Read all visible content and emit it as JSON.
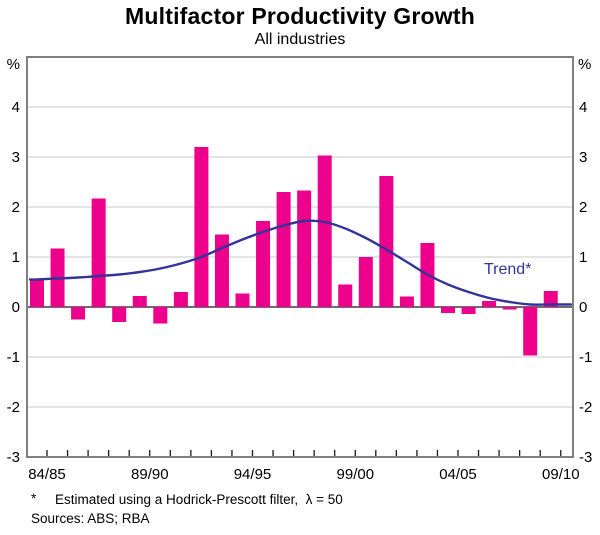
{
  "header": {
    "title": "Multifactor Productivity Growth",
    "subtitle": "All industries"
  },
  "axes": {
    "left_unit": "%",
    "right_unit": "%"
  },
  "annotations": {
    "trend_label": "Trend*"
  },
  "footnotes": {
    "asterisk": "*",
    "footnote": "Estimated using a Hodrick-Prescott filter,  λ = 50",
    "sources": "Sources: ABS; RBA"
  },
  "chart_data": {
    "type": "bar",
    "title": "Multifactor Productivity Growth",
    "subtitle": "All industries",
    "ylabel": "%",
    "ylim": [
      -3,
      5
    ],
    "yticks": [
      -3,
      -2,
      -1,
      0,
      1,
      2,
      3,
      4
    ],
    "grid": true,
    "legend_position": "inline-annotation",
    "categories": [
      "84/85",
      "85/86",
      "86/87",
      "87/88",
      "88/89",
      "89/90",
      "90/91",
      "91/92",
      "92/93",
      "93/94",
      "94/95",
      "95/96",
      "96/97",
      "97/98",
      "98/99",
      "99/00",
      "00/01",
      "01/02",
      "02/03",
      "03/04",
      "04/05",
      "05/06",
      "06/07",
      "07/08",
      "08/09",
      "09/10"
    ],
    "x_tick_labels": [
      "84/85",
      "89/90",
      "94/95",
      "99/00",
      "04/05",
      "09/10"
    ],
    "x_tick_label_indices": [
      0,
      5,
      10,
      15,
      20,
      25
    ],
    "series": [
      {
        "name": "Multifactor productivity growth",
        "type": "bar",
        "color": "#EC008C",
        "values": [
          0.55,
          1.17,
          -0.25,
          2.17,
          -0.3,
          0.22,
          -0.33,
          0.3,
          3.2,
          1.45,
          0.27,
          1.72,
          2.3,
          2.33,
          3.03,
          0.45,
          1.0,
          2.62,
          0.21,
          1.28,
          -0.12,
          -0.14,
          0.12,
          -0.05,
          -0.97,
          0.32
        ]
      },
      {
        "name": "Trend*",
        "type": "line",
        "color": "#333399",
        "values": [
          0.55,
          0.57,
          0.59,
          0.62,
          0.65,
          0.7,
          0.77,
          0.87,
          1.0,
          1.18,
          1.35,
          1.5,
          1.63,
          1.72,
          1.7,
          1.57,
          1.38,
          1.15,
          0.9,
          0.65,
          0.45,
          0.3,
          0.18,
          0.1,
          0.05,
          0.05
        ]
      }
    ],
    "colors": {
      "bar": "#EC008C",
      "trend": "#333399",
      "gridline": "#C9C9C9",
      "zero_line": "#6E6E6E",
      "frame": "#808080",
      "tick": "#1A1A1A"
    }
  }
}
